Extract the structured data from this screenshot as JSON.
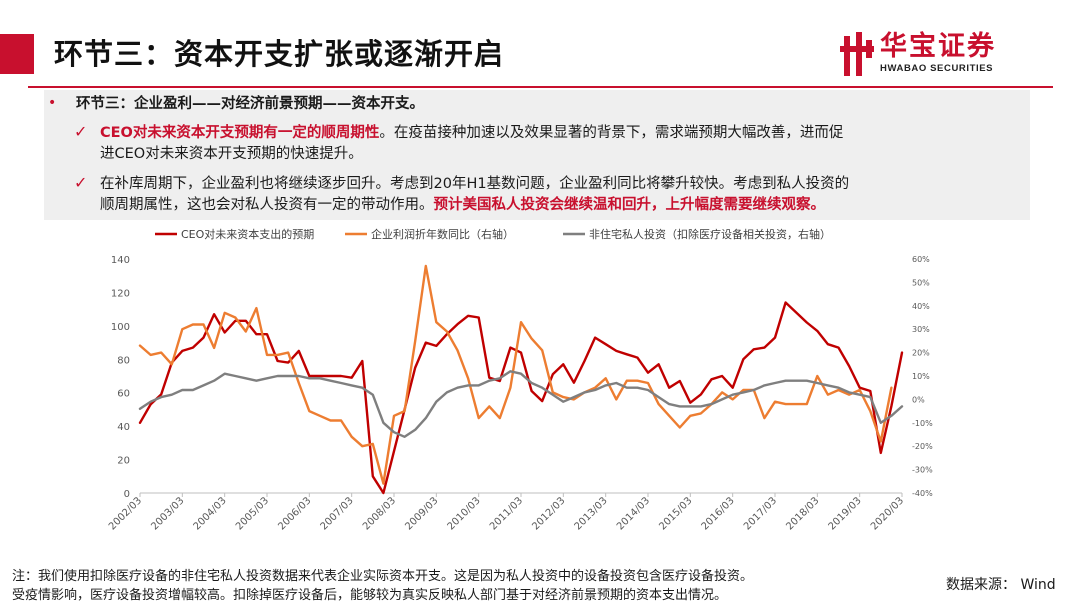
{
  "header": {
    "title": "环节三：资本开支扩张或逐渐开启",
    "logo_name": "华宝证券",
    "logo_sub": "HWABAO SECURITIES"
  },
  "summary": {
    "bullet": "环节三：企业盈利——对经济前景预期——资本开支。",
    "point1_red": "CEO对未来资本开支预期有一定的顺周期性",
    "point1_text1": "。在疫苗接种加速以及效果显著的背景下，需求端预期大幅改善，进而促",
    "point1_text2": "进CEO对未来资本开支预期的快速提升。",
    "point2_text1": "在补库周期下，企业盈利也将继续逐步回升。考虑到20年H1基数问题，企业盈利同比将攀升较快。考虑到私人投资的",
    "point2_text2": "顺周期属性，这也会对私人投资有一定的带动作用。",
    "point2_red": "预计美国私人投资会继续温和回升，上升幅度需要继续观察。"
  },
  "notes": {
    "line1": "注：我们使用扣除医疗设备的非住宅私人投资数据来代表企业实际资本开支。这是因为私人投资中的设备投资包含医疗设备投资。",
    "line2": "受疫情影响，医疗设备投资增幅较高。扣除掉医疗设备后，能够较为真实反映私人部门基于对经济前景预期的资本支出情况。",
    "source": "数据来源： Wind"
  },
  "colors": {
    "accent": "#c8102e",
    "ceo": "#c00000",
    "profit": "#ed7d31",
    "invest": "#7f7f7f"
  },
  "chart_data": {
    "type": "line",
    "x_start": "2002/03",
    "x_ticks": [
      "2002/03",
      "2003/03",
      "2004/03",
      "2005/03",
      "2006/03",
      "2007/03",
      "2008/03",
      "2009/03",
      "2010/03",
      "2011/03",
      "2012/03",
      "2013/03",
      "2014/03",
      "2015/03",
      "2016/03",
      "2017/03",
      "2018/03",
      "2019/03",
      "2020/03"
    ],
    "ylim_left": [
      0,
      140
    ],
    "yticks_left": [
      "0",
      "20",
      "40",
      "60",
      "80",
      "100",
      "120",
      "140"
    ],
    "ylim_right": [
      -40,
      60
    ],
    "yticks_right": [
      "-40%",
      "-30%",
      "-20%",
      "-10%",
      "0%",
      "10%",
      "20%",
      "30%",
      "40%",
      "50%",
      "60%"
    ],
    "grid": false,
    "legend_position": "top",
    "series": [
      {
        "name": "CEO对未来资本支出的预期",
        "axis": "left",
        "values": [
          42,
          53,
          59,
          78,
          85,
          87,
          93,
          107,
          96,
          103,
          103,
          95,
          95,
          79,
          78,
          85,
          70,
          70,
          70,
          70,
          69,
          79,
          10,
          0,
          25,
          50,
          75,
          90,
          88,
          95,
          101,
          106,
          105,
          69,
          67,
          87,
          84,
          61,
          55,
          71,
          77,
          66,
          79,
          93,
          89,
          85,
          83,
          81,
          72,
          77,
          63,
          67,
          54,
          59,
          68,
          70,
          63,
          80,
          86,
          87,
          93,
          114,
          108,
          102,
          97,
          89,
          87,
          76,
          63,
          61,
          24,
          52,
          84
        ]
      },
      {
        "name": "企业利润折年数同比（右轴）",
        "axis": "right",
        "values": [
          23,
          19,
          20,
          15,
          30,
          32,
          32,
          22,
          37,
          35,
          29,
          39,
          19,
          19,
          20,
          7,
          -5,
          -7,
          -9,
          -9,
          -16,
          -20,
          -19,
          -36,
          -7,
          -5,
          25,
          57,
          33,
          29,
          21,
          9,
          -8,
          -3,
          -8,
          5,
          33,
          26,
          21,
          3,
          1,
          0,
          3,
          5,
          9,
          0,
          8,
          8,
          7,
          -2,
          -7,
          -12,
          -7,
          -6,
          -2,
          3,
          0,
          4,
          4,
          -8,
          -1,
          -2,
          -2,
          -2,
          10,
          2,
          4,
          2,
          4,
          -5,
          -18,
          5
        ]
      },
      {
        "name": "非住宅私人投资（扣除医疗设备相关投资，右轴）",
        "axis": "right",
        "values": [
          -4,
          -1,
          1,
          2,
          4,
          4,
          6,
          8,
          11,
          10,
          9,
          8,
          9,
          10,
          10,
          10,
          9,
          9,
          8,
          7,
          6,
          5,
          2,
          -10,
          -14,
          -16,
          -13,
          -8,
          -1,
          3,
          5,
          6,
          6,
          8,
          9,
          12,
          11,
          7,
          5,
          2,
          -1,
          1,
          3,
          4,
          6,
          7,
          5,
          5,
          4,
          1,
          -2,
          -3,
          -3,
          -3,
          -2,
          0,
          2,
          3,
          4,
          6,
          7,
          8,
          8,
          8,
          7,
          6,
          5,
          3,
          2,
          1,
          -10,
          -7,
          -3
        ]
      }
    ]
  }
}
